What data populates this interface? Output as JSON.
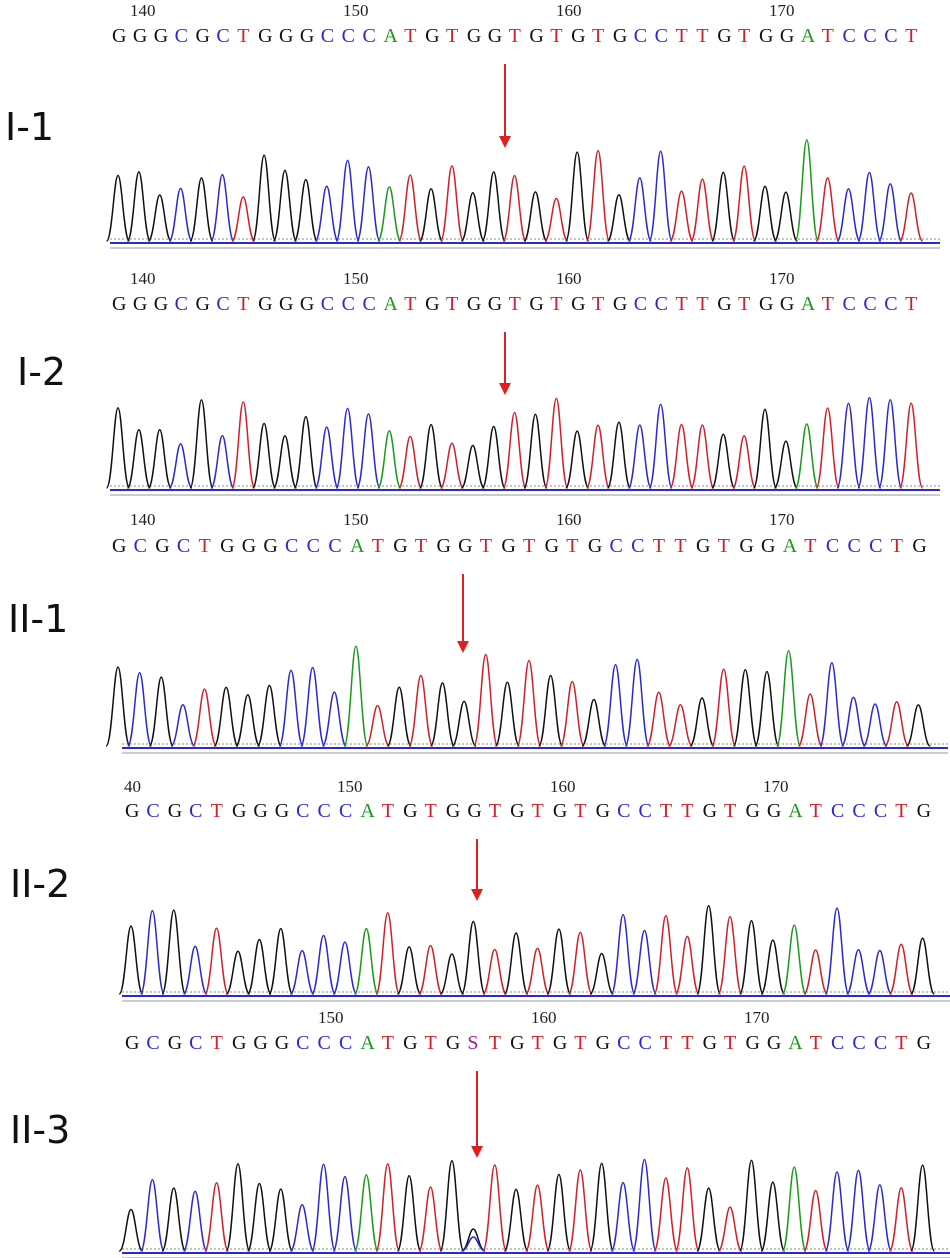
{
  "panels": [
    {
      "label": "I-1",
      "ticks": [
        "140",
        "150",
        "160",
        "170"
      ],
      "bases": [
        "G",
        "G",
        "G",
        "C",
        "G",
        "C",
        "T",
        "G",
        "G",
        "G",
        "C",
        "C",
        "C",
        "A",
        "T",
        "G",
        "T",
        "G",
        "G",
        "T",
        "G",
        "T",
        "G",
        "T",
        "G",
        "C",
        "C",
        "T",
        "T",
        "G",
        "T",
        "G",
        "G",
        "A",
        "T",
        "C",
        "C",
        "C",
        "T"
      ]
    },
    {
      "label": "I-2",
      "ticks": [
        "140",
        "150",
        "160",
        "170"
      ],
      "bases": [
        "G",
        "G",
        "G",
        "C",
        "G",
        "C",
        "T",
        "G",
        "G",
        "G",
        "C",
        "C",
        "C",
        "A",
        "T",
        "G",
        "T",
        "G",
        "G",
        "T",
        "G",
        "T",
        "G",
        "T",
        "G",
        "C",
        "C",
        "T",
        "T",
        "G",
        "T",
        "G",
        "G",
        "A",
        "T",
        "C",
        "C",
        "C",
        "T"
      ]
    },
    {
      "label": "II-1",
      "ticks": [
        "140",
        "150",
        "160",
        "170"
      ],
      "bases": [
        "G",
        "C",
        "G",
        "C",
        "T",
        "G",
        "G",
        "G",
        "C",
        "C",
        "C",
        "A",
        "T",
        "G",
        "T",
        "G",
        "G",
        "T",
        "G",
        "T",
        "G",
        "T",
        "G",
        "C",
        "C",
        "T",
        "T",
        "G",
        "T",
        "G",
        "G",
        "A",
        "T",
        "C",
        "C",
        "C",
        "T",
        "G"
      ]
    },
    {
      "label": "II-2",
      "ticks": [
        "40",
        "150",
        "160",
        "170"
      ],
      "bases": [
        "G",
        "C",
        "G",
        "C",
        "T",
        "G",
        "G",
        "G",
        "C",
        "C",
        "C",
        "A",
        "T",
        "G",
        "T",
        "G",
        "G",
        "T",
        "G",
        "T",
        "G",
        "T",
        "G",
        "C",
        "C",
        "T",
        "T",
        "G",
        "T",
        "G",
        "G",
        "A",
        "T",
        "C",
        "C",
        "C",
        "T",
        "G"
      ]
    },
    {
      "label": "II-3",
      "ticks": [
        "150",
        "160",
        "170"
      ],
      "bases": [
        "G",
        "C",
        "G",
        "C",
        "T",
        "G",
        "G",
        "G",
        "C",
        "C",
        "C",
        "A",
        "T",
        "G",
        "T",
        "G",
        "S",
        "T",
        "G",
        "T",
        "G",
        "T",
        "G",
        "C",
        "C",
        "T",
        "T",
        "G",
        "T",
        "G",
        "G",
        "A",
        "T",
        "C",
        "C",
        "C",
        "T",
        "G"
      ]
    }
  ]
}
